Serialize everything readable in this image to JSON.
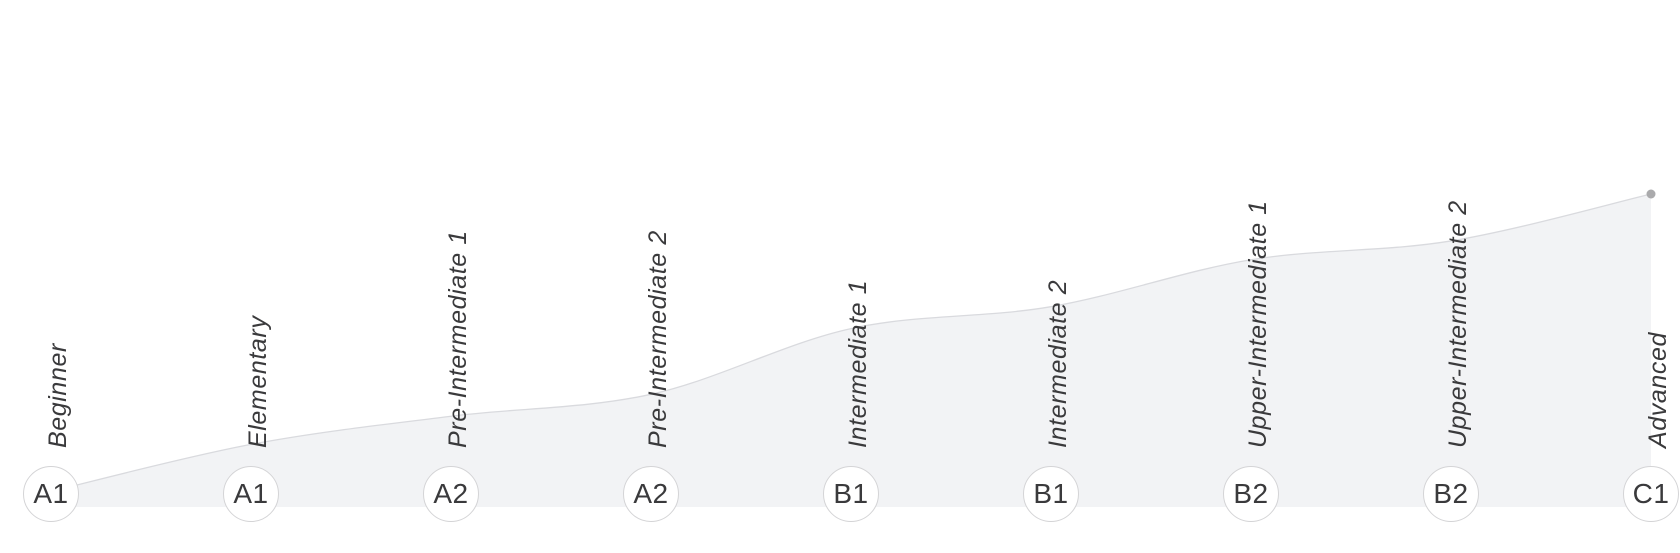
{
  "page": {
    "background": "#ffffff"
  },
  "chart_data": {
    "type": "area",
    "title": "",
    "xlabel": "",
    "ylabel": "",
    "grid": false,
    "legend": false,
    "axes_visible": false,
    "ylim": [
      0,
      100
    ],
    "categories": [
      "Beginner",
      "Elementary",
      "Pre-Intermediate 1",
      "Pre-Intermediate 2",
      "Intermediate 1",
      "Intermediate 2",
      "Upper-Intermediate 1",
      "Upper-Intermediate 2",
      "Advanced"
    ],
    "badge_labels": [
      "A1",
      "A1",
      "A2",
      "A2",
      "B1",
      "B1",
      "B2",
      "B2",
      "C1"
    ],
    "values": [
      5,
      20,
      29,
      36,
      57,
      64,
      79,
      85,
      100
    ],
    "endpoint_marker": "dot-on-last-point",
    "colors": {
      "background": "#ffffff",
      "area_fill": "#f2f3f5",
      "line": "#d9dade",
      "endpoint_dot": "#aaaaac",
      "level_label_text": "#3a3a3c",
      "badge_text": "#3a3a3c",
      "badge_border": "#d4d4d6",
      "badge_fill": "#ffffff"
    }
  }
}
